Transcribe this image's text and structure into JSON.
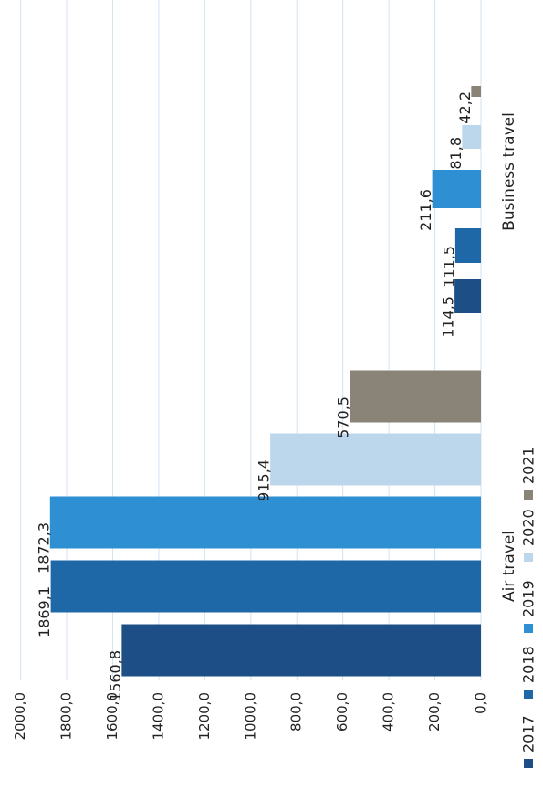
{
  "chart_data": {
    "type": "bar",
    "orientation": "rotated (bars grow to the left, image rotated 90°)",
    "categories": [
      "Air travel",
      "Business travel"
    ],
    "series": [
      {
        "name": "2017",
        "color": "#1d4f86",
        "values": [
          1560.8,
          114.5
        ],
        "labels": [
          "1560,8",
          "114,5"
        ]
      },
      {
        "name": "2018",
        "color": "#1f68a8",
        "values": [
          1869.1,
          111.5
        ],
        "labels": [
          "1869,1",
          "111,5"
        ]
      },
      {
        "name": "2019",
        "color": "#2e8fd3",
        "values": [
          1872.3,
          211.6
        ],
        "labels": [
          "1872,3",
          "211,6"
        ]
      },
      {
        "name": "2020",
        "color": "#bcd7ec",
        "values": [
          915.4,
          81.8
        ],
        "labels": [
          "915,4",
          "81,8"
        ]
      },
      {
        "name": "2021",
        "color": "#8a8478",
        "values": [
          570.5,
          42.2
        ],
        "labels": [
          "570,5",
          "42,2"
        ]
      }
    ],
    "ticks": [
      "0,0",
      "200,0",
      "400,0",
      "600,0",
      "800,0",
      "1000,0",
      "1200,0",
      "1400,0",
      "1600,0",
      "1800,0",
      "2000,0"
    ],
    "tick_values": [
      0,
      200,
      400,
      600,
      800,
      1000,
      1200,
      1400,
      1600,
      1800,
      2000
    ],
    "ylim": [
      0,
      2000
    ],
    "grid": true,
    "legend_position": "bottom-left (rotated)"
  }
}
